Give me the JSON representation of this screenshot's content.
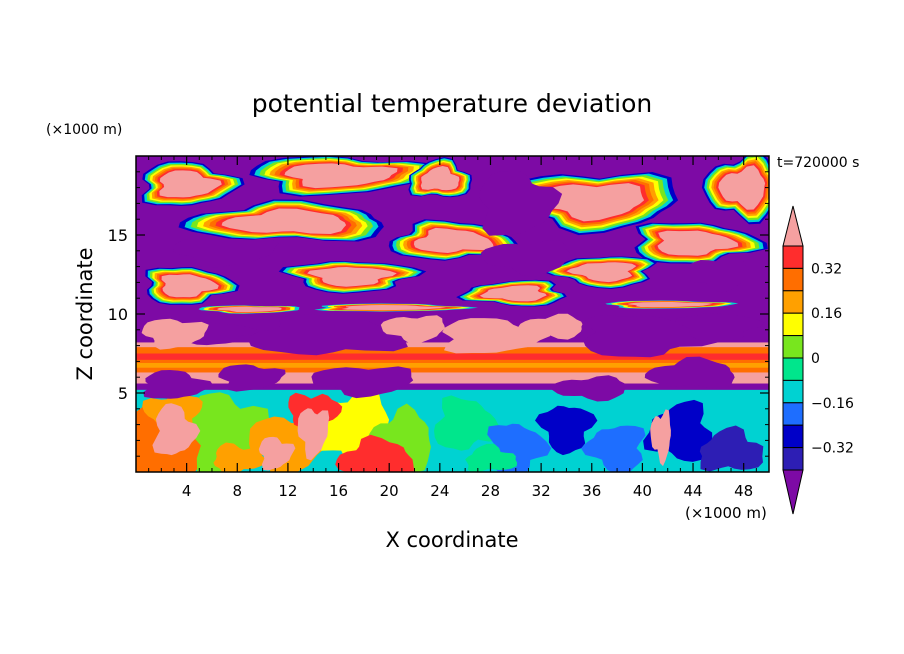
{
  "chart_data": {
    "type": "heatmap",
    "title": "potential temperature deviation",
    "time_label": "t=720000 s",
    "xlabel": "X coordinate",
    "ylabel": "Z coordinate",
    "x_unit": "(×1000 m)",
    "y_unit": "(×1000 m)",
    "xlim": [
      0,
      50
    ],
    "ylim": [
      0,
      20
    ],
    "x_ticks": [
      4,
      8,
      12,
      16,
      20,
      24,
      28,
      32,
      36,
      40,
      44,
      48
    ],
    "y_ticks": [
      5,
      10,
      15
    ],
    "colorbar": {
      "levels": [
        -0.4,
        -0.32,
        -0.24,
        -0.16,
        -0.08,
        0,
        0.08,
        0.16,
        0.24,
        0.32,
        0.4
      ],
      "labels": [
        "0.32",
        "0.16",
        "0",
        "−0.16",
        "−0.32"
      ],
      "label_values": [
        0.32,
        0.16,
        0,
        -0.16,
        -0.32
      ],
      "colors": [
        "#7d0aa5",
        "#2d1eb4",
        "#0000c8",
        "#1e6eff",
        "#00d2d2",
        "#00e68c",
        "#78e61e",
        "#ffff00",
        "#ffa000",
        "#ff6e00",
        "#ff2d2d",
        "#f5a0a0"
      ],
      "extend": "both"
    },
    "regions": {
      "upper": "z 9–20: alternating large patches of values ≤ −0.4 and ≥ 0.4 separated by narrow multi-colored bands",
      "band": "z ≈ 6–8: horizontal band of positive values 0.24–0.4",
      "lower": "z 0–5: mixed field of values between −0.32 and 0.4 with convective plumes"
    }
  }
}
